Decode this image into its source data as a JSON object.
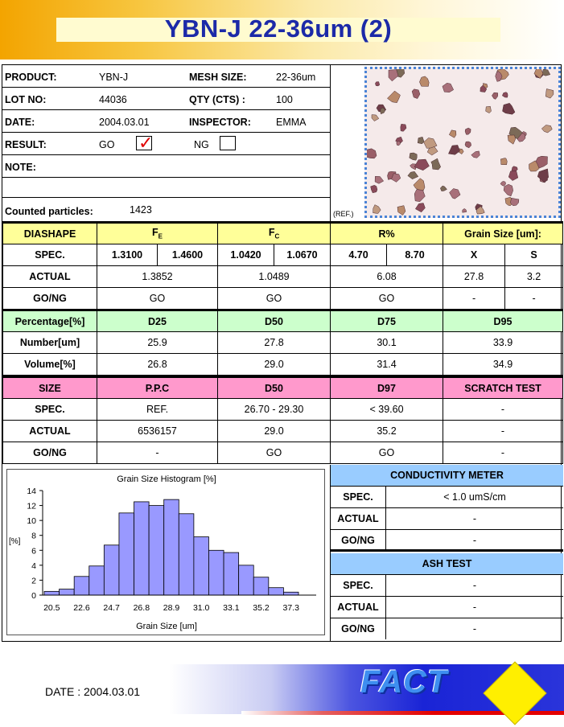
{
  "title": "YBN-J 22-36um (2)",
  "info": {
    "product_label": "PRODUCT:",
    "product_value": "YBN-J",
    "mesh_label": "MESH SIZE:",
    "mesh_value": "22-36um",
    "lot_label": "LOT NO:",
    "lot_value": "44036",
    "qty_label": "QTY (CTS) :",
    "qty_value": "100",
    "date_label": "DATE:",
    "date_value": "2004.03.01",
    "inspector_label": "INSPECTOR:",
    "inspector_value": "EMMA",
    "result_label": "RESULT:",
    "go_label": "GO",
    "ng_label": "NG",
    "go_checked": true,
    "ng_checked": false,
    "note_label": "NOTE:",
    "counted_label": "Counted particles:",
    "counted_value": "1423",
    "ref_label": "(REF.)"
  },
  "shape_table": {
    "headers": [
      "DIASHAPE",
      "F",
      "F",
      "R%",
      "Grain Size [um]:"
    ],
    "header_subscripts": [
      "",
      "E",
      "C",
      "",
      ""
    ],
    "spec_label": "SPEC.",
    "spec": [
      "1.3100",
      "1.4600",
      "1.0420",
      "1.0670",
      "4.70",
      "8.70",
      "X",
      "S"
    ],
    "actual_label": "ACTUAL",
    "actual": [
      "1.3852",
      "1.0489",
      "6.08",
      "27.8",
      "3.2"
    ],
    "gong_label": "GO/NG",
    "gong": [
      "GO",
      "GO",
      "GO",
      "-",
      "-"
    ]
  },
  "percent_table": {
    "headers": [
      "Percentage[%]",
      "D25",
      "D50",
      "D75",
      "D95"
    ],
    "rows": [
      {
        "label": "Number[um]",
        "values": [
          "25.9",
          "27.8",
          "30.1",
          "33.9"
        ]
      },
      {
        "label": "Volume[%]",
        "values": [
          "26.8",
          "29.0",
          "31.4",
          "34.9"
        ]
      }
    ]
  },
  "size_table": {
    "headers": [
      "SIZE",
      "P.P.C",
      "D50",
      "D97",
      "SCRATCH TEST"
    ],
    "rows": [
      {
        "label": "SPEC.",
        "values": [
          "REF.",
          "26.70 - 29.30",
          "< 39.60",
          "-"
        ]
      },
      {
        "label": "ACTUAL",
        "values": [
          "6536157",
          "29.0",
          "35.2",
          "-"
        ]
      },
      {
        "label": "GO/NG",
        "values": [
          "-",
          "GO",
          "GO",
          "-"
        ]
      }
    ]
  },
  "conductivity": {
    "title": "CONDUCTIVITY METER",
    "rows": [
      {
        "label": "SPEC.",
        "value": "< 1.0 umS/cm"
      },
      {
        "label": "ACTUAL",
        "value": "-"
      },
      {
        "label": "GO/NG",
        "value": "-"
      }
    ]
  },
  "ash": {
    "title": "ASH TEST",
    "rows": [
      {
        "label": "SPEC.",
        "value": "-"
      },
      {
        "label": "ACTUAL",
        "value": "-"
      },
      {
        "label": "GO/NG",
        "value": "-"
      }
    ]
  },
  "chart_data": {
    "type": "bar",
    "title": "Grain Size Histogram [%]",
    "xlabel": "Grain Size [um]",
    "ylabel": "[%]",
    "ylim": [
      0,
      14
    ],
    "yticks": [
      0,
      2,
      4,
      6,
      8,
      10,
      12,
      14
    ],
    "x_tick_labels": [
      "20.5",
      "22.6",
      "24.7",
      "26.8",
      "28.9",
      "31.0",
      "33.1",
      "35.2",
      "37.3"
    ],
    "values": [
      0.5,
      0.8,
      2.5,
      3.9,
      6.7,
      11.0,
      12.5,
      12.0,
      12.8,
      10.9,
      7.8,
      6.0,
      5.7,
      4.0,
      2.4,
      1.0,
      0.4
    ],
    "bar_color": "#9999ff",
    "grid": false
  },
  "footer": {
    "date": "DATE : 2004.03.01",
    "logo": "FACT"
  }
}
